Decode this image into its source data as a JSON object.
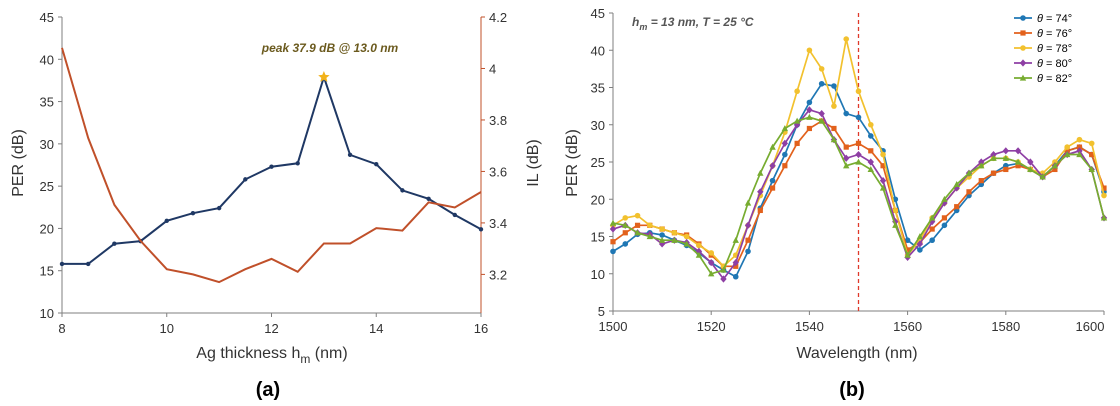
{
  "colors": {
    "per": "#1f3864",
    "il": "#c0502a",
    "peak_star": "#f2b21a",
    "peak_text": "#6b5a1e",
    "marker_line": "#e0392b",
    "axis": "#7f7f7f",
    "s74": "#1f77b4",
    "s76": "#e2611c",
    "s78": "#f2c12e",
    "s80": "#8e3fa4",
    "s82": "#77ac30"
  },
  "chart_data": [
    {
      "type": "line",
      "panel_label": "(a)",
      "xlabel": "Ag thickness h",
      "xlabel_sub": "m",
      "xlabel_unit": " (nm)",
      "ylabel": "PER (dB)",
      "y2label": "IL (dB)",
      "xlim": [
        8,
        16
      ],
      "ylim": [
        10,
        45
      ],
      "y2lim": [
        3.05,
        4.2
      ],
      "xticks": [
        "8",
        "10",
        "12",
        "14",
        "16"
      ],
      "yticks": [
        "10",
        "15",
        "20",
        "25",
        "30",
        "35",
        "40",
        "45"
      ],
      "y2ticks": [
        "3.2",
        "3.4",
        "3.6",
        "3.8",
        "4",
        "4.2"
      ],
      "grid": false,
      "annotation": "peak 37.9 dB @ 13.0 nm",
      "peak": {
        "x": 13,
        "y": 37.9,
        "marker": "star"
      },
      "series": [
        {
          "axis": "left",
          "x": [
            8,
            8.5,
            9,
            9.5,
            10,
            10.5,
            11,
            11.5,
            12,
            12.5,
            13,
            13.5,
            14,
            14.5,
            15,
            15.5,
            16
          ],
          "values": [
            15.8,
            15.8,
            18.2,
            18.5,
            20.9,
            21.8,
            22.4,
            25.8,
            27.3,
            27.7,
            37.9,
            28.7,
            27.6,
            24.5,
            23.5,
            21.6,
            19.9
          ]
        },
        {
          "axis": "right",
          "x": [
            8,
            8.5,
            9,
            9.5,
            10,
            10.5,
            11,
            11.5,
            12,
            12.5,
            13,
            13.5,
            14,
            14.5,
            15,
            15.5,
            16
          ],
          "values": [
            4.08,
            3.73,
            3.47,
            3.33,
            3.22,
            3.2,
            3.17,
            3.22,
            3.26,
            3.21,
            3.32,
            3.32,
            3.38,
            3.37,
            3.48,
            3.46,
            3.52
          ]
        }
      ]
    },
    {
      "type": "line",
      "panel_label": "(b)",
      "xlabel": "Wavelength (nm)",
      "ylabel": "PER (dB)",
      "xlim": [
        1500,
        1600
      ],
      "ylim": [
        5,
        45
      ],
      "xticks": [
        "1500",
        "1520",
        "1540",
        "1560",
        "1580",
        "1600"
      ],
      "yticks": [
        "5",
        "10",
        "15",
        "20",
        "25",
        "30",
        "35",
        "40",
        "45"
      ],
      "grid": false,
      "legend_position": "top-right",
      "annotation_h": "h",
      "annotation_sub": "m",
      "annotation_rest": " = 13 nm, T = 25 °C",
      "vline_x": 1550,
      "x": [
        1500,
        1502.5,
        1505,
        1507.5,
        1510,
        1512.5,
        1515,
        1517.5,
        1520,
        1522.5,
        1525,
        1527.5,
        1530,
        1532.5,
        1535,
        1537.5,
        1540,
        1542.5,
        1545,
        1547.5,
        1550,
        1552.5,
        1555,
        1557.5,
        1560,
        1562.5,
        1565,
        1567.5,
        1570,
        1572.5,
        1575,
        1577.5,
        1580,
        1582.5,
        1585,
        1587.5,
        1590,
        1592.5,
        1595,
        1597.5,
        1600
      ],
      "series": [
        {
          "theta": "74°",
          "marker": "circle",
          "values": [
            13.0,
            14.0,
            15.3,
            15.5,
            15.2,
            14.5,
            13.8,
            12.8,
            11.5,
            10.5,
            9.6,
            13.0,
            18.8,
            22.5,
            26.0,
            30.0,
            33.0,
            35.5,
            35.2,
            31.5,
            31.0,
            28.5,
            26.5,
            20.0,
            14.5,
            13.2,
            14.5,
            16.5,
            18.5,
            20.5,
            22.0,
            23.5,
            24.5,
            24.8,
            24.0,
            23.0,
            24.5,
            26.5,
            27.0,
            26.0,
            21.0
          ]
        },
        {
          "theta": "76°",
          "marker": "square",
          "values": [
            14.3,
            15.5,
            16.5,
            16.5,
            16.0,
            15.5,
            15.2,
            14.0,
            12.5,
            11.0,
            11.0,
            14.5,
            18.5,
            21.5,
            24.5,
            27.5,
            29.5,
            30.5,
            29.5,
            27.0,
            27.5,
            26.5,
            24.5,
            18.5,
            13.2,
            14.2,
            16.0,
            17.5,
            19.0,
            21.0,
            22.5,
            23.5,
            24.0,
            24.5,
            24.0,
            23.0,
            24.0,
            26.5,
            27.0,
            26.0,
            21.5
          ]
        },
        {
          "theta": "78°",
          "marker": "circle",
          "values": [
            16.5,
            17.5,
            17.8,
            16.5,
            16.0,
            15.5,
            15.0,
            13.8,
            12.8,
            11.0,
            12.5,
            16.5,
            20.5,
            24.5,
            29.0,
            34.5,
            40.0,
            37.5,
            32.5,
            41.5,
            34.5,
            30.0,
            26.0,
            18.5,
            12.5,
            14.5,
            17.5,
            19.5,
            21.5,
            23.0,
            24.5,
            25.5,
            25.5,
            25.0,
            24.0,
            23.5,
            25.0,
            27.0,
            28.0,
            27.5,
            20.5
          ]
        },
        {
          "theta": "80°",
          "marker": "diamond",
          "values": [
            16.0,
            16.5,
            15.5,
            15.3,
            14.0,
            14.5,
            14.2,
            13.0,
            11.5,
            9.3,
            11.5,
            16.5,
            21.0,
            24.5,
            27.5,
            30.0,
            32.0,
            31.5,
            28.0,
            25.5,
            26.0,
            25.0,
            22.5,
            17.0,
            12.2,
            14.0,
            17.0,
            19.5,
            21.5,
            23.5,
            25.0,
            26.0,
            26.5,
            26.5,
            25.0,
            23.0,
            24.5,
            26.0,
            26.5,
            24.0,
            17.5
          ]
        },
        {
          "theta": "82°",
          "marker": "triangle",
          "values": [
            16.8,
            16.5,
            15.5,
            15.0,
            14.5,
            14.5,
            14.0,
            12.5,
            10.0,
            10.5,
            14.5,
            19.5,
            23.5,
            27.0,
            29.5,
            30.5,
            31.0,
            30.5,
            28.0,
            24.5,
            25.0,
            24.0,
            21.5,
            16.5,
            12.5,
            15.0,
            17.5,
            20.0,
            22.0,
            23.5,
            24.5,
            25.5,
            25.5,
            25.0,
            24.0,
            23.0,
            24.5,
            26.0,
            26.0,
            24.0,
            17.5
          ]
        }
      ]
    }
  ]
}
